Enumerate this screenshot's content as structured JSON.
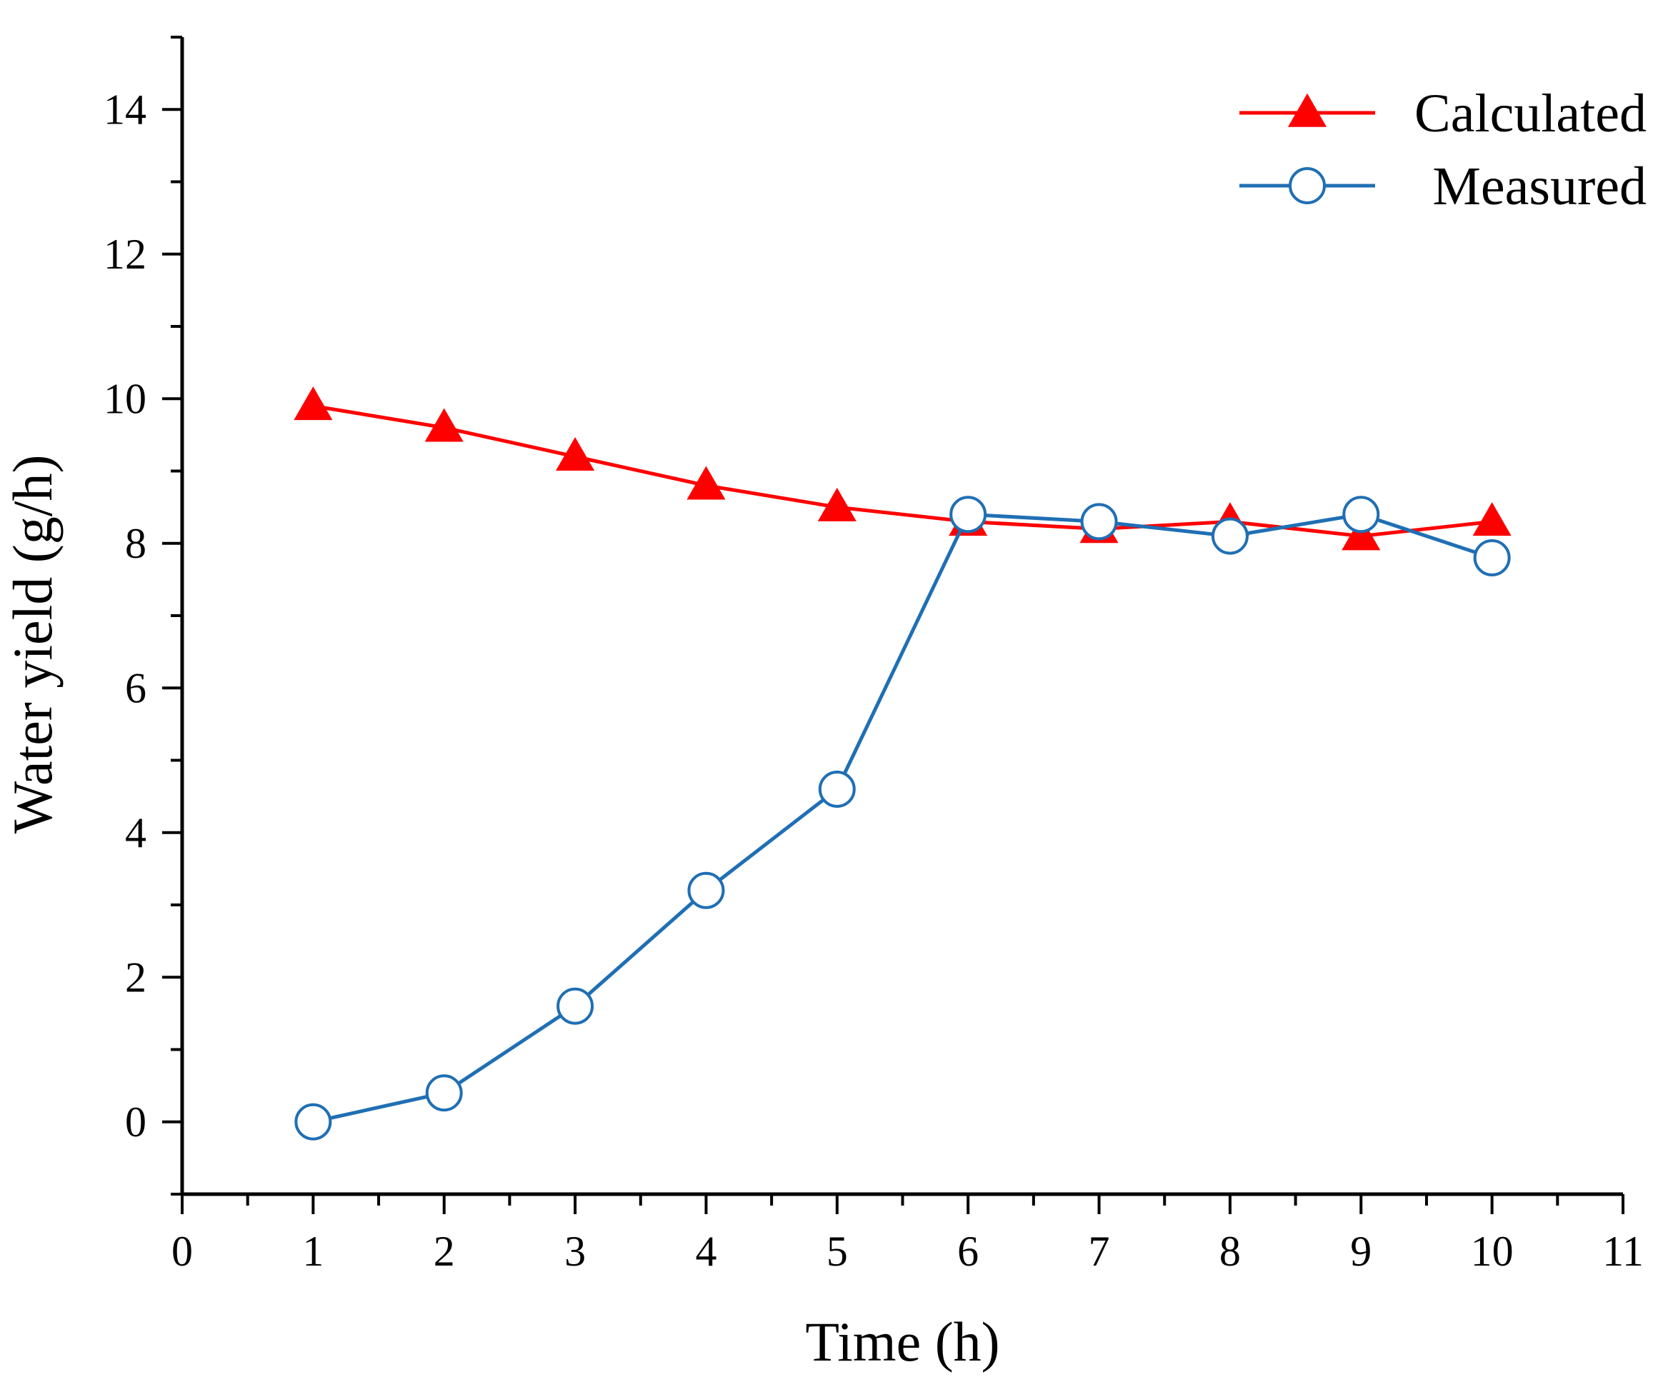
{
  "chart_data": {
    "type": "line",
    "title": "",
    "xlabel": "Time (h)",
    "ylabel": "Water yield (g/h)",
    "xlim": [
      0,
      11
    ],
    "ylim": [
      -1,
      15
    ],
    "x_ticks": [
      0,
      1,
      2,
      3,
      4,
      5,
      6,
      7,
      8,
      9,
      10,
      11
    ],
    "y_ticks": [
      0,
      2,
      4,
      6,
      8,
      10,
      12,
      14
    ],
    "x_tick_labels": [
      "0",
      "1",
      "2",
      "3",
      "4",
      "5",
      "6",
      "7",
      "8",
      "9",
      "10",
      "11"
    ],
    "y_tick_labels": [
      "0",
      "2",
      "4",
      "6",
      "8",
      "10",
      "12",
      "14"
    ],
    "grid": false,
    "legend_position": "top-right",
    "x": [
      1,
      2,
      3,
      4,
      5,
      6,
      7,
      8,
      9,
      10
    ],
    "series": [
      {
        "name": "Calculated",
        "color": "#ff0000",
        "marker": "triangle",
        "values": [
          9.9,
          9.6,
          9.2,
          8.8,
          8.5,
          8.3,
          8.2,
          8.3,
          8.1,
          8.3
        ]
      },
      {
        "name": "Measured",
        "color": "#1f6fb4",
        "marker": "circle",
        "values": [
          0.0,
          0.4,
          1.6,
          3.2,
          4.6,
          8.4,
          8.3,
          8.1,
          8.4,
          7.8
        ]
      }
    ]
  }
}
